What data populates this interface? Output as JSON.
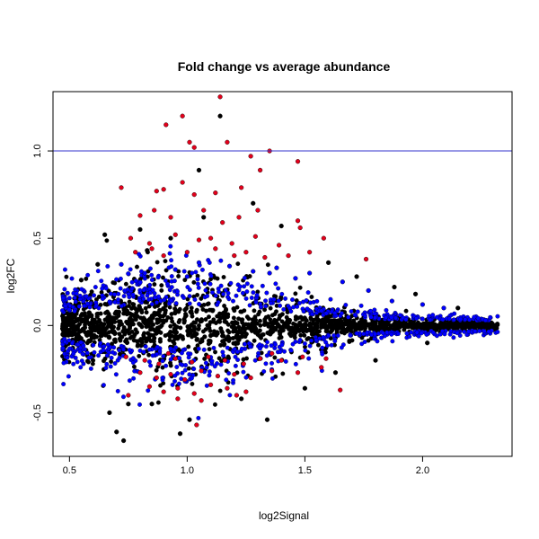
{
  "chart_data": {
    "type": "scatter",
    "title": "Fold change vs average abundance",
    "xlabel": "log2Signal",
    "ylabel": "log2FC",
    "xlim": [
      0.43,
      2.38
    ],
    "ylim": [
      -0.75,
      1.34
    ],
    "x_ticks": [
      0.5,
      1.0,
      1.5,
      2.0
    ],
    "x_tick_labels": [
      "0.5",
      "1.0",
      "1.5",
      "2.0"
    ],
    "y_ticks": [
      -0.5,
      0.0,
      0.5,
      1.0
    ],
    "y_tick_labels": [
      "-0.5",
      "0.0",
      "0.5",
      "1.0"
    ],
    "grid": false,
    "reference_lines": [
      {
        "orientation": "horizontal",
        "value": 1.0,
        "color": "#3333cc"
      }
    ],
    "colors": {
      "black": "#000000",
      "blue": "#0000ff",
      "red": "#e3001b",
      "reference_line": "#3333cc"
    },
    "series": [
      {
        "color": "#e3001b",
        "points": [
          [
            0.98,
            1.2
          ],
          [
            0.91,
            1.15
          ],
          [
            1.14,
            1.31
          ],
          [
            1.17,
            1.05
          ],
          [
            1.01,
            1.05
          ],
          [
            1.03,
            1.02
          ],
          [
            1.27,
            0.97
          ],
          [
            1.35,
            1.0
          ],
          [
            1.47,
            0.94
          ],
          [
            1.31,
            0.89
          ],
          [
            0.72,
            0.79
          ],
          [
            0.87,
            0.77
          ],
          [
            0.9,
            0.78
          ],
          [
            0.98,
            0.82
          ],
          [
            1.03,
            0.75
          ],
          [
            1.12,
            0.76
          ],
          [
            1.23,
            0.79
          ],
          [
            1.3,
            0.66
          ],
          [
            1.47,
            0.6
          ],
          [
            1.58,
            0.5
          ],
          [
            0.8,
            0.63
          ],
          [
            0.86,
            0.66
          ],
          [
            0.93,
            0.62
          ],
          [
            1.07,
            0.66
          ],
          [
            1.15,
            0.59
          ],
          [
            1.22,
            0.62
          ],
          [
            1.48,
            0.56
          ],
          [
            0.76,
            0.5
          ],
          [
            0.84,
            0.47
          ],
          [
            0.95,
            0.52
          ],
          [
            1.05,
            0.49
          ],
          [
            1.1,
            0.5
          ],
          [
            1.19,
            0.47
          ],
          [
            1.29,
            0.51
          ],
          [
            1.39,
            0.46
          ],
          [
            1.52,
            0.42
          ],
          [
            0.78,
            0.42
          ],
          [
            0.9,
            0.4
          ],
          [
            1.0,
            0.42
          ],
          [
            1.12,
            0.44
          ],
          [
            1.2,
            0.4
          ],
          [
            1.33,
            0.39
          ],
          [
            1.43,
            0.4
          ],
          [
            1.76,
            0.38
          ],
          [
            0.85,
            0.44
          ],
          [
            1.25,
            0.42
          ],
          [
            0.74,
            -0.18
          ],
          [
            0.82,
            -0.2
          ],
          [
            0.88,
            -0.22
          ],
          [
            0.95,
            -0.19
          ],
          [
            1.02,
            -0.21
          ],
          [
            1.09,
            -0.18
          ],
          [
            1.16,
            -0.2
          ],
          [
            1.24,
            -0.22
          ],
          [
            1.31,
            -0.19
          ],
          [
            1.4,
            -0.2
          ],
          [
            1.49,
            -0.18
          ],
          [
            1.59,
            -0.19
          ],
          [
            0.8,
            -0.27
          ],
          [
            0.87,
            -0.3
          ],
          [
            0.93,
            -0.28
          ],
          [
            0.99,
            -0.31
          ],
          [
            1.06,
            -0.26
          ],
          [
            1.13,
            -0.29
          ],
          [
            1.2,
            -0.28
          ],
          [
            1.27,
            -0.3
          ],
          [
            1.36,
            -0.26
          ],
          [
            1.47,
            -0.27
          ],
          [
            0.84,
            -0.35
          ],
          [
            0.9,
            -0.38
          ],
          [
            0.96,
            -0.36
          ],
          [
            1.03,
            -0.39
          ],
          [
            1.1,
            -0.34
          ],
          [
            1.17,
            -0.36
          ],
          [
            1.25,
            -0.38
          ],
          [
            0.75,
            -0.4
          ],
          [
            0.96,
            -0.42
          ],
          [
            1.06,
            -0.43
          ],
          [
            1.21,
            -0.4
          ],
          [
            1.65,
            -0.37
          ],
          [
            1.04,
            -0.57
          ],
          [
            0.92,
            -0.16
          ],
          [
            1.36,
            -0.16
          ],
          [
            1.57,
            -0.24
          ]
        ]
      },
      {
        "color": "#000000",
        "points": [
          [
            1.14,
            1.2
          ],
          [
            1.05,
            0.89
          ],
          [
            1.28,
            0.7
          ],
          [
            1.4,
            0.57
          ],
          [
            1.07,
            0.62
          ],
          [
            0.93,
            0.5
          ],
          [
            0.83,
            0.43
          ],
          [
            1.6,
            0.36
          ],
          [
            1.72,
            0.28
          ],
          [
            1.88,
            0.22
          ],
          [
            0.73,
            -0.66
          ],
          [
            0.7,
            -0.61
          ],
          [
            0.67,
            -0.5
          ],
          [
            0.75,
            -0.45
          ],
          [
            0.85,
            -0.45
          ],
          [
            1.01,
            -0.54
          ],
          [
            1.34,
            -0.54
          ],
          [
            1.23,
            -0.42
          ],
          [
            1.5,
            -0.36
          ],
          [
            1.63,
            -0.27
          ],
          [
            1.8,
            -0.2
          ],
          [
            2.02,
            -0.1
          ],
          [
            0.6,
            -0.2
          ],
          [
            0.62,
            0.35
          ],
          [
            0.55,
            0.26
          ],
          [
            1.97,
            0.18
          ],
          [
            2.15,
            0.1
          ],
          [
            0.65,
            0.52
          ],
          [
            0.97,
            -0.62
          ],
          [
            0.8,
            0.55
          ]
        ]
      },
      {
        "color": "#0000ff",
        "points": [
          [
            0.72,
            0.35
          ],
          [
            0.95,
            0.32
          ],
          [
            1.05,
            0.36
          ],
          [
            1.18,
            0.34
          ],
          [
            1.28,
            0.31
          ],
          [
            1.38,
            0.33
          ],
          [
            1.52,
            0.3
          ],
          [
            1.66,
            0.25
          ],
          [
            1.77,
            0.2
          ],
          [
            1.87,
            0.14
          ],
          [
            2.0,
            0.12
          ],
          [
            2.09,
            0.1
          ],
          [
            1.35,
            0.3
          ],
          [
            1.46,
            0.27
          ],
          [
            1.0,
            0.28
          ],
          [
            0.82,
            0.3
          ]
        ]
      }
    ]
  }
}
